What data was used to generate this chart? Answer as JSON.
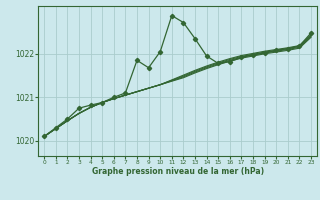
{
  "xlabel": "Graphe pression niveau de la mer (hPa)",
  "background_color": "#cce8ec",
  "grid_color": "#aacccc",
  "line_color": "#336633",
  "xlim": [
    -0.5,
    23.5
  ],
  "ylim": [
    1019.65,
    1023.1
  ],
  "yticks": [
    1020,
    1021,
    1022
  ],
  "xticks": [
    0,
    1,
    2,
    3,
    4,
    5,
    6,
    7,
    8,
    9,
    10,
    11,
    12,
    13,
    14,
    15,
    16,
    17,
    18,
    19,
    20,
    21,
    22,
    23
  ],
  "main_y": [
    1020.1,
    1020.3,
    1020.5,
    1020.75,
    1020.82,
    1020.88,
    1021.0,
    1021.1,
    1021.85,
    1021.68,
    1022.05,
    1022.88,
    1022.72,
    1022.35,
    1021.95,
    1021.78,
    1021.82,
    1021.92,
    1021.98,
    1022.02,
    1022.08,
    1022.12,
    1022.18,
    1022.48
  ],
  "smooth_lines": [
    [
      1020.1,
      1020.28,
      1020.46,
      1020.63,
      1020.77,
      1020.88,
      1020.97,
      1021.05,
      1021.13,
      1021.21,
      1021.29,
      1021.4,
      1021.51,
      1021.62,
      1021.72,
      1021.81,
      1021.89,
      1021.96,
      1022.01,
      1022.06,
      1022.1,
      1022.14,
      1022.19,
      1022.44
    ],
    [
      1020.1,
      1020.28,
      1020.46,
      1020.63,
      1020.77,
      1020.88,
      1020.97,
      1021.05,
      1021.13,
      1021.21,
      1021.29,
      1021.39,
      1021.49,
      1021.6,
      1021.7,
      1021.79,
      1021.87,
      1021.94,
      1021.99,
      1022.04,
      1022.08,
      1022.12,
      1022.17,
      1022.42
    ],
    [
      1020.1,
      1020.28,
      1020.46,
      1020.63,
      1020.77,
      1020.88,
      1020.97,
      1021.05,
      1021.13,
      1021.21,
      1021.29,
      1021.38,
      1021.47,
      1021.58,
      1021.68,
      1021.77,
      1021.85,
      1021.92,
      1021.97,
      1022.02,
      1022.06,
      1022.1,
      1022.15,
      1022.4
    ],
    [
      1020.1,
      1020.28,
      1020.46,
      1020.63,
      1020.77,
      1020.88,
      1020.97,
      1021.05,
      1021.13,
      1021.21,
      1021.29,
      1021.37,
      1021.45,
      1021.56,
      1021.66,
      1021.75,
      1021.83,
      1021.9,
      1021.95,
      1022.0,
      1022.04,
      1022.08,
      1022.13,
      1022.38
    ]
  ]
}
